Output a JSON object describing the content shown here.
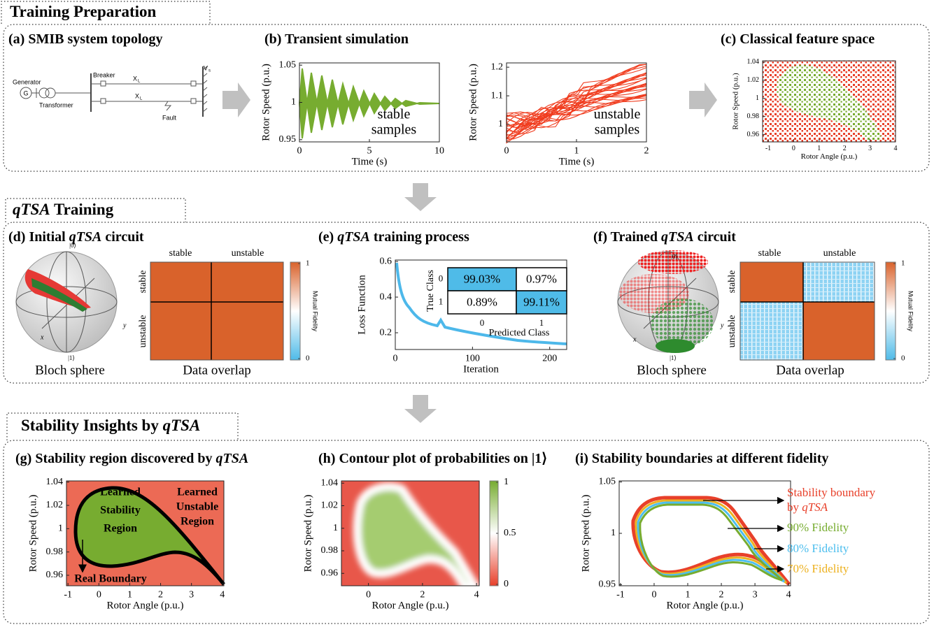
{
  "headers": [
    "Training Preparation",
    "qTSA Training",
    "Stability Insights by qTSA"
  ],
  "panels": [
    {
      "title": "(a) SMIB system topology",
      "diagram": {
        "generator": "Generator",
        "g": "G",
        "transformer": "Transformer",
        "breaker": "Breaker",
        "x": "X",
        "x_sub": "L",
        "fault": "Fault",
        "v": "V",
        "v_sub": "s"
      }
    },
    {
      "title": "(b) Transient simulation",
      "charts": [
        {
          "xlabel": "Time (s)",
          "ylabel": "Rotor Speed (p.u.)",
          "xlim": [
            0,
            10
          ],
          "ylim": [
            0.947,
            1.053
          ],
          "xticks": [
            0,
            5,
            10
          ],
          "yticks": [
            0.95,
            1,
            1.05
          ],
          "annotation": [
            "stable",
            "samples"
          ]
        },
        {
          "xlabel": "Time (s)",
          "ylabel": "Rotor Speed (p.u.)",
          "xlim": [
            0,
            2
          ],
          "ylim": [
            0.939,
            1.215
          ],
          "xticks": [
            0,
            1,
            2
          ],
          "yticks": [
            1,
            1.1,
            1.2
          ],
          "annotation": [
            "unstable",
            "samples"
          ]
        }
      ]
    },
    {
      "title": "(c) Classical feature space",
      "charts": [
        {
          "xlabel": "Rotor Angle (p.u.)",
          "ylabel": "Rotor Speed (p.u.)",
          "xlim": [
            -1.22,
            4
          ],
          "ylim": [
            0.952,
            1.0415
          ],
          "xticks": [
            -1,
            0,
            1,
            2,
            3,
            4
          ],
          "yticks": [
            0.96,
            0.98,
            1,
            1.02,
            1.04
          ]
        }
      ]
    },
    {
      "title": "(d) Initial qTSA circuit",
      "bloch": {
        "top": "|0⟩",
        "bottom": "|1⟩",
        "x": "x",
        "y": "y",
        "caption": "Bloch sphere"
      },
      "overlap": {
        "classes": [
          "stable",
          "unstable"
        ],
        "caption": "Data overlap",
        "colorbar": {
          "label": "Mutual Fidelity",
          "ticks": [
            0,
            1
          ]
        }
      }
    },
    {
      "title": "(e) qTSA training process",
      "charts": [
        {
          "xlabel": "Iteration",
          "ylabel": "Loss Function",
          "xlim": [
            0,
            222
          ],
          "ylim": [
            0.106,
            0.608
          ],
          "xticks": [
            0,
            100,
            200
          ],
          "yticks": [
            0.2,
            0.4,
            0.6
          ]
        }
      ],
      "confusion": {
        "row_label": "True Class",
        "col_label": "Predicted Class",
        "rows": [
          0,
          1
        ],
        "cols": [
          0,
          1
        ],
        "cells": [
          [
            "99.03%",
            "0.97%"
          ],
          [
            "0.89%",
            "99.11%"
          ]
        ],
        "highlight": "#4fbbe8"
      }
    },
    {
      "title": "(f) Trained qTSA circuit",
      "bloch": {
        "top": "|0⟩",
        "bottom": "|1⟩",
        "x": "x",
        "y": "y",
        "caption": "Bloch sphere"
      },
      "overlap": {
        "classes": [
          "stable",
          "unstable"
        ],
        "caption": "Data overlap",
        "colorbar": {
          "label": "Mutual Fidelity",
          "ticks": [
            0,
            1
          ]
        }
      }
    },
    {
      "title": "(g) Stability region discovered by qTSA",
      "charts": [
        {
          "xlabel": "Rotor Angle (p.u.)",
          "ylabel": "Rotor Speed (p.u.)",
          "xlim": [
            -1.05,
            4.05
          ],
          "ylim": [
            0.951,
            1.041
          ],
          "xticks": [
            -1,
            0,
            1,
            2,
            3,
            4
          ],
          "yticks": [
            0.96,
            0.98,
            1,
            1.02,
            1.04
          ],
          "annotations": [
            [
              "Learned",
              "Stability",
              "Region"
            ],
            [
              "Learned",
              "Unstable",
              "Region"
            ],
            [
              "Real Boundary"
            ]
          ]
        }
      ]
    },
    {
      "title": "(h) Contour plot of probabilities on |1⟩",
      "charts": [
        {
          "xlabel": "Rotor Angle (p.u.)",
          "ylabel": "Rotor Speed (p.u.)",
          "xlim": [
            -1,
            4.1
          ],
          "ylim": [
            0.949,
            1.042
          ],
          "xticks": [
            0,
            2,
            4
          ],
          "yticks": [
            0.96,
            0.98,
            1,
            1.02,
            1.04
          ],
          "colorbar": {
            "ticks": [
              0,
              0.5,
              1
            ]
          }
        }
      ]
    },
    {
      "title": "(i) Stability boundaries at different fidelity",
      "charts": [
        {
          "xlabel": "Rotor Angle (p.u.)",
          "ylabel": "Rotor Speed (p.u.)",
          "xlim": [
            -1.04,
            4.06
          ],
          "ylim": [
            0.949,
            1.051
          ],
          "xticks": [
            -1,
            0,
            1,
            2,
            3,
            4
          ],
          "yticks": [
            0.95,
            1,
            1.05
          ],
          "legend": [
            {
              "name": "Stability boundary by qTSA",
              "color": "#e8402a"
            },
            {
              "name": "90% Fidelity",
              "color": "#77ac30"
            },
            {
              "name": "80% Fidelity",
              "color": "#4dbeee"
            },
            {
              "name": "70% Fidelity",
              "color": "#edb120"
            }
          ]
        }
      ]
    }
  ]
}
